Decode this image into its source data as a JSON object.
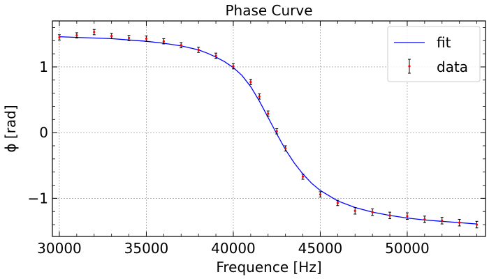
{
  "chart_data": {
    "type": "line",
    "title": "Phase Curve",
    "xlabel": "Frequence [Hz]",
    "ylabel": "ϕ [rad]",
    "xlim": [
      29600,
      54500
    ],
    "ylim": [
      -1.58,
      1.7
    ],
    "grid": true,
    "legend_placement": "top-right",
    "x_ticks": [
      30000,
      35000,
      40000,
      45000,
      50000
    ],
    "x_tick_labels": [
      "30000",
      "35000",
      "40000",
      "45000",
      "50000"
    ],
    "y_ticks": [
      1,
      0,
      -1
    ],
    "y_tick_labels": [
      "1",
      "0",
      "−1"
    ],
    "series": [
      {
        "name": "fit",
        "kind": "line",
        "color": "#0000ff",
        "x": [
          30000,
          31000,
          32000,
          33000,
          34000,
          35000,
          36000,
          37000,
          38000,
          38500,
          39000,
          39500,
          40000,
          40500,
          41000,
          41500,
          42000,
          42500,
          43000,
          43500,
          44000,
          44500,
          45000,
          46000,
          47000,
          48000,
          49000,
          50000,
          51000,
          52000,
          53000,
          54000
        ],
        "y": [
          1.46,
          1.45,
          1.44,
          1.43,
          1.41,
          1.39,
          1.36,
          1.32,
          1.26,
          1.21,
          1.15,
          1.08,
          0.99,
          0.87,
          0.7,
          0.48,
          0.23,
          -0.02,
          -0.26,
          -0.46,
          -0.63,
          -0.77,
          -0.88,
          -1.04,
          -1.14,
          -1.21,
          -1.26,
          -1.3,
          -1.33,
          -1.35,
          -1.37,
          -1.39
        ]
      },
      {
        "name": "data",
        "kind": "errorbar",
        "color": "#ff0000",
        "errcolor": "#000000",
        "x": [
          30000,
          31000,
          32000,
          33000,
          34000,
          35000,
          36000,
          37000,
          38000,
          39000,
          40000,
          41000,
          41500,
          42000,
          42500,
          43000,
          44000,
          45000,
          46000,
          47000,
          48000,
          49000,
          50000,
          51000,
          52000,
          53000,
          54000
        ],
        "y": [
          1.45,
          1.48,
          1.53,
          1.47,
          1.44,
          1.43,
          1.39,
          1.33,
          1.26,
          1.17,
          1.01,
          0.77,
          0.55,
          0.29,
          0.02,
          -0.24,
          -0.67,
          -0.94,
          -1.07,
          -1.19,
          -1.21,
          -1.26,
          -1.27,
          -1.32,
          -1.34,
          -1.37,
          -1.4
        ],
        "err": [
          0.04,
          0.04,
          0.04,
          0.04,
          0.04,
          0.04,
          0.04,
          0.04,
          0.04,
          0.04,
          0.04,
          0.04,
          0.04,
          0.04,
          0.04,
          0.04,
          0.04,
          0.04,
          0.04,
          0.05,
          0.05,
          0.05,
          0.05,
          0.05,
          0.05,
          0.05,
          0.05
        ]
      }
    ]
  }
}
